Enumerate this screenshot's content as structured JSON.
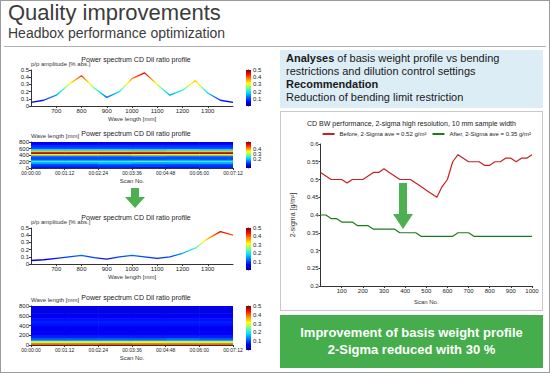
{
  "header": {
    "title": "Quality improvements",
    "subtitle": "Headbox performance optimization"
  },
  "analysis": {
    "heading": "Analyses",
    "text": "of basis weight profile vs bending restrictions and dilution control settings"
  },
  "recommendation": {
    "heading": "Recommendation",
    "text": "Reduction of bending limit restriction"
  },
  "result": {
    "lines": [
      "Improvement of basis weight profile",
      "2-Sigma reduced with 30 %"
    ]
  },
  "chart_data": [
    {
      "type": "line",
      "title": "Power spectrum CD Dil ratio profile",
      "x_label": "Wave length [mm]",
      "y_label": "p/p amplitude [% abs.]",
      "x": [
        600,
        650,
        700,
        750,
        800,
        850,
        900,
        950,
        1000,
        1050,
        1100,
        1150,
        1200,
        1250,
        1300,
        1350,
        1400
      ],
      "values": [
        0.05,
        0.08,
        0.15,
        0.3,
        0.42,
        0.25,
        0.12,
        0.2,
        0.38,
        0.46,
        0.3,
        0.15,
        0.22,
        0.35,
        0.18,
        0.08,
        0.05
      ],
      "xlim": [
        600,
        1400
      ],
      "xticks": [
        700,
        800,
        900,
        1000,
        1100,
        1200,
        1300
      ],
      "ylim": [
        0,
        0.5
      ],
      "yticks": [
        0,
        0.1,
        0.2,
        0.3,
        0.4,
        0.5
      ],
      "grid": false,
      "colorbar": {
        "range": [
          0,
          0.5
        ],
        "ticks": [
          0.1,
          0.2,
          0.3,
          0.4,
          0.5
        ]
      }
    },
    {
      "type": "heatmap",
      "title": "Power spectrum CD Dil ratio profile",
      "x_label": "Scan No.",
      "y_label": "Wave length [mm]",
      "x": [
        0.6,
        1.8,
        3.0,
        4.2,
        5.4,
        6.6
      ],
      "y": [
        25,
        75,
        125,
        175,
        225,
        275,
        325,
        375,
        425,
        475,
        525,
        575,
        625,
        675,
        725,
        775
      ],
      "cells": [
        [
          0.08,
          0.08,
          0.09,
          0.08,
          0.08,
          0.09
        ],
        [
          0.1,
          0.1,
          0.1,
          0.11,
          0.1,
          0.1
        ],
        [
          0.12,
          0.12,
          0.13,
          0.12,
          0.12,
          0.12
        ],
        [
          0.18,
          0.18,
          0.19,
          0.18,
          0.18,
          0.18
        ],
        [
          0.24,
          0.24,
          0.24,
          0.25,
          0.24,
          0.24
        ],
        [
          0.12,
          0.12,
          0.12,
          0.12,
          0.13,
          0.12
        ],
        [
          0.1,
          0.1,
          0.1,
          0.1,
          0.1,
          0.1
        ],
        [
          0.15,
          0.15,
          0.15,
          0.16,
          0.15,
          0.15
        ],
        [
          0.35,
          0.35,
          0.36,
          0.35,
          0.35,
          0.35
        ],
        [
          0.52,
          0.52,
          0.53,
          0.52,
          0.52,
          0.52
        ],
        [
          0.38,
          0.38,
          0.38,
          0.39,
          0.38,
          0.38
        ],
        [
          0.2,
          0.2,
          0.2,
          0.2,
          0.21,
          0.2
        ],
        [
          0.12,
          0.12,
          0.12,
          0.12,
          0.12,
          0.12
        ],
        [
          0.1,
          0.1,
          0.1,
          0.1,
          0.1,
          0.1
        ],
        [
          0.08,
          0.08,
          0.08,
          0.08,
          0.08,
          0.08
        ],
        [
          0.06,
          0.06,
          0.06,
          0.06,
          0.06,
          0.06
        ]
      ],
      "xlim": [
        0,
        7.2
      ],
      "xticks": [
        {
          "value": 0,
          "label": "00:00:00"
        },
        {
          "value": 1.2,
          "label": "00:01:12"
        },
        {
          "value": 2.4,
          "label": "00:02:24"
        },
        {
          "value": 3.6,
          "label": "00:03:36"
        },
        {
          "value": 4.8,
          "label": "00:04:48"
        },
        {
          "value": 6,
          "label": "00:06:00"
        },
        {
          "value": 7.2,
          "label": "00:07:12"
        }
      ],
      "ylim": [
        0,
        800
      ],
      "yticks": [
        0,
        200,
        400,
        600,
        800
      ],
      "grid": false,
      "colorbar": {
        "range": [
          0,
          0.55
        ],
        "ticks": [
          0.1,
          0.2,
          0.3,
          0.4,
          0.5
        ]
      }
    },
    {
      "type": "line",
      "title": "Power spectrum CD Dil ratio profile",
      "x_label": "Wave length [mm]",
      "y_label": "p/p amplitude [% abs.]",
      "x": [
        600,
        650,
        700,
        750,
        800,
        850,
        900,
        950,
        1000,
        1050,
        1100,
        1150,
        1200,
        1250,
        1300,
        1350,
        1400
      ],
      "values": [
        0.05,
        0.06,
        0.08,
        0.1,
        0.12,
        0.09,
        0.07,
        0.1,
        0.12,
        0.1,
        0.08,
        0.1,
        0.15,
        0.22,
        0.35,
        0.45,
        0.4
      ],
      "xlim": [
        600,
        1400
      ],
      "xticks": [
        700,
        800,
        900,
        1000,
        1100,
        1200,
        1300
      ],
      "ylim": [
        0,
        0.5
      ],
      "yticks": [
        0,
        0.1,
        0.2,
        0.3,
        0.4,
        0.5
      ],
      "grid": false,
      "colorbar": {
        "range": [
          0,
          0.5
        ],
        "ticks": [
          0.1,
          0.2,
          0.3,
          0.4,
          0.5
        ]
      }
    },
    {
      "type": "heatmap",
      "title": "Power spectrum CD Dil ratio profile",
      "x_label": "Scan No.",
      "y_label": "Wave length [mm]",
      "x": [
        0.6,
        1.8,
        3.0,
        4.2,
        5.4,
        6.6
      ],
      "y": [
        25,
        75,
        125,
        175,
        225,
        275,
        325,
        375,
        425,
        475,
        525,
        575,
        625,
        675,
        725,
        775
      ],
      "cells": [
        [
          0.4,
          0.4,
          0.41,
          0.4,
          0.4,
          0.4
        ],
        [
          0.28,
          0.28,
          0.28,
          0.29,
          0.28,
          0.28
        ],
        [
          0.12,
          0.12,
          0.12,
          0.12,
          0.13,
          0.12
        ],
        [
          0.08,
          0.08,
          0.08,
          0.08,
          0.08,
          0.08
        ],
        [
          0.06,
          0.06,
          0.06,
          0.06,
          0.06,
          0.06
        ],
        [
          0.06,
          0.06,
          0.06,
          0.06,
          0.06,
          0.06
        ],
        [
          0.05,
          0.05,
          0.05,
          0.05,
          0.05,
          0.05
        ],
        [
          0.06,
          0.06,
          0.06,
          0.06,
          0.06,
          0.06
        ],
        [
          0.07,
          0.07,
          0.07,
          0.07,
          0.07,
          0.07
        ],
        [
          0.08,
          0.08,
          0.08,
          0.08,
          0.08,
          0.08
        ],
        [
          0.07,
          0.07,
          0.07,
          0.07,
          0.07,
          0.07
        ],
        [
          0.06,
          0.06,
          0.06,
          0.06,
          0.06,
          0.06
        ],
        [
          0.05,
          0.05,
          0.05,
          0.05,
          0.05,
          0.05
        ],
        [
          0.05,
          0.05,
          0.05,
          0.05,
          0.05,
          0.05
        ],
        [
          0.05,
          0.05,
          0.05,
          0.05,
          0.05,
          0.05
        ],
        [
          0.05,
          0.05,
          0.05,
          0.05,
          0.05,
          0.05
        ]
      ],
      "xlim": [
        0,
        7.2
      ],
      "xticks": [
        {
          "value": 0,
          "label": "00:00:00"
        },
        {
          "value": 1.2,
          "label": "00:01:12"
        },
        {
          "value": 2.4,
          "label": "00:02:24"
        },
        {
          "value": 3.6,
          "label": "00:03:36"
        },
        {
          "value": 4.8,
          "label": "00:04:48"
        },
        {
          "value": 6,
          "label": "00:06:00"
        },
        {
          "value": 7.2,
          "label": "00:07:12"
        }
      ],
      "ylim": [
        0,
        800
      ],
      "yticks": [
        0,
        200,
        400,
        600,
        800
      ],
      "grid": false,
      "colorbar": {
        "range": [
          0,
          0.5
        ],
        "ticks": [
          0.1,
          0.2,
          0.3,
          0.4,
          0.5
        ]
      }
    },
    {
      "type": "line",
      "title": "CD BW performance, 2-sigma high resolution, 10 mm sample width",
      "x_label": "Scan No.",
      "y_label": "2-sigma [g/m²]",
      "x": [
        0,
        25,
        50,
        75,
        100,
        125,
        150,
        175,
        200,
        225,
        250,
        275,
        300,
        325,
        350,
        375,
        400,
        425,
        450,
        475,
        500,
        525,
        550,
        575,
        600,
        625,
        650,
        675,
        700,
        725,
        750,
        775,
        800,
        825,
        850,
        875,
        900,
        925,
        950,
        975,
        1000
      ],
      "series": [
        {
          "name": "Before, 2-Sigma ave = 0.52 g/m²",
          "color": "#cc1f1f",
          "values": [
            0.52,
            0.51,
            0.5,
            0.5,
            0.5,
            0.49,
            0.5,
            0.5,
            0.5,
            0.51,
            0.52,
            0.52,
            0.53,
            0.52,
            0.51,
            0.5,
            0.5,
            0.5,
            0.49,
            0.48,
            0.47,
            0.46,
            0.45,
            0.48,
            0.5,
            0.55,
            0.57,
            0.56,
            0.55,
            0.55,
            0.55,
            0.54,
            0.54,
            0.55,
            0.55,
            0.56,
            0.56,
            0.55,
            0.56,
            0.56,
            0.57
          ]
        },
        {
          "name": "After, 2-Sigma ave = 0.35 g/m²",
          "color": "#1f7a1f",
          "values": [
            0.4,
            0.4,
            0.39,
            0.39,
            0.38,
            0.38,
            0.38,
            0.37,
            0.37,
            0.37,
            0.36,
            0.36,
            0.36,
            0.36,
            0.36,
            0.35,
            0.35,
            0.35,
            0.35,
            0.34,
            0.34,
            0.34,
            0.34,
            0.34,
            0.34,
            0.34,
            0.35,
            0.35,
            0.35,
            0.34,
            0.34,
            0.34,
            0.34,
            0.34,
            0.34,
            0.34,
            0.34,
            0.34,
            0.34,
            0.34,
            0.34
          ]
        }
      ],
      "xlim": [
        0,
        1000
      ],
      "xticks": [
        100,
        200,
        300,
        400,
        500,
        600,
        700,
        800,
        900,
        1000
      ],
      "ylim": [
        0.2,
        0.6
      ],
      "yticks": [
        0.2,
        0.25,
        0.3,
        0.35,
        0.4,
        0.45,
        0.5,
        0.55,
        0.6
      ],
      "grid": false,
      "legend": "upper right"
    }
  ]
}
